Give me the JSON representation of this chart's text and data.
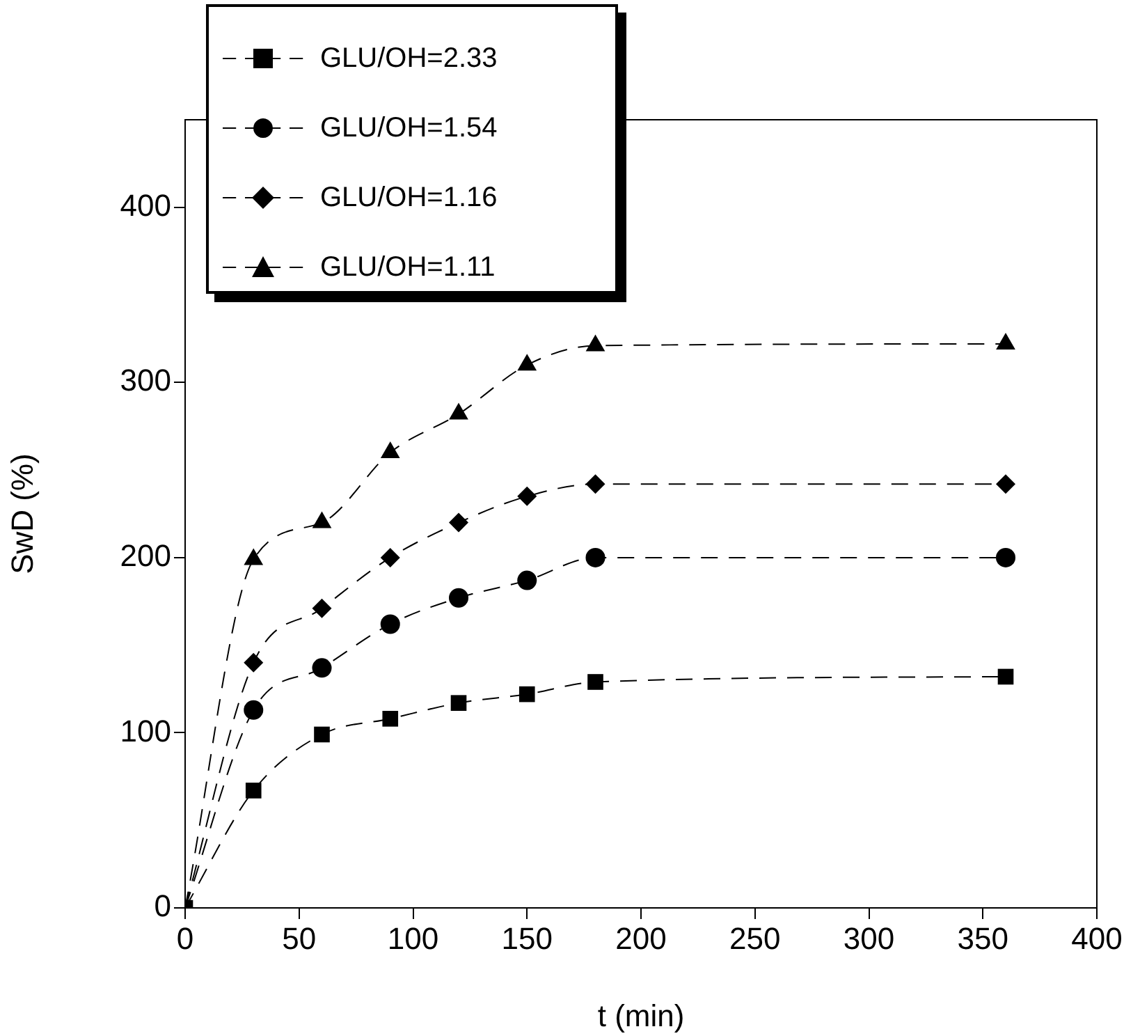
{
  "chart_data": {
    "type": "line",
    "xlabel": "t (min)",
    "ylabel": "SwD (%)",
    "x": [
      0,
      30,
      60,
      90,
      120,
      150,
      180,
      360
    ],
    "series": [
      {
        "name": "GLU/OH=2.33",
        "color": "#000000",
        "marker": "square",
        "values": [
          0,
          67,
          99,
          108,
          117,
          122,
          129,
          132
        ]
      },
      {
        "name": "GLU/OH=1.54",
        "color": "#000000",
        "marker": "circle",
        "values": [
          0,
          113,
          137,
          162,
          177,
          187,
          200,
          200
        ]
      },
      {
        "name": "GLU/OH=1.16",
        "color": "#000000",
        "marker": "diamond",
        "values": [
          0,
          140,
          171,
          200,
          220,
          235,
          242,
          242
        ]
      },
      {
        "name": "GLU/OH=1.11",
        "color": "#000000",
        "marker": "triangle",
        "values": [
          0,
          199,
          220,
          260,
          282,
          310,
          321,
          322
        ]
      }
    ],
    "xlim": [
      0,
      400
    ],
    "xticks": [
      0,
      50,
      100,
      150,
      200,
      250,
      300,
      350,
      400
    ],
    "ylim": [
      0,
      450
    ],
    "yticks": [
      0,
      100,
      200,
      300,
      400
    ],
    "grid": false,
    "legend": "top left",
    "line_style": "dashed"
  }
}
